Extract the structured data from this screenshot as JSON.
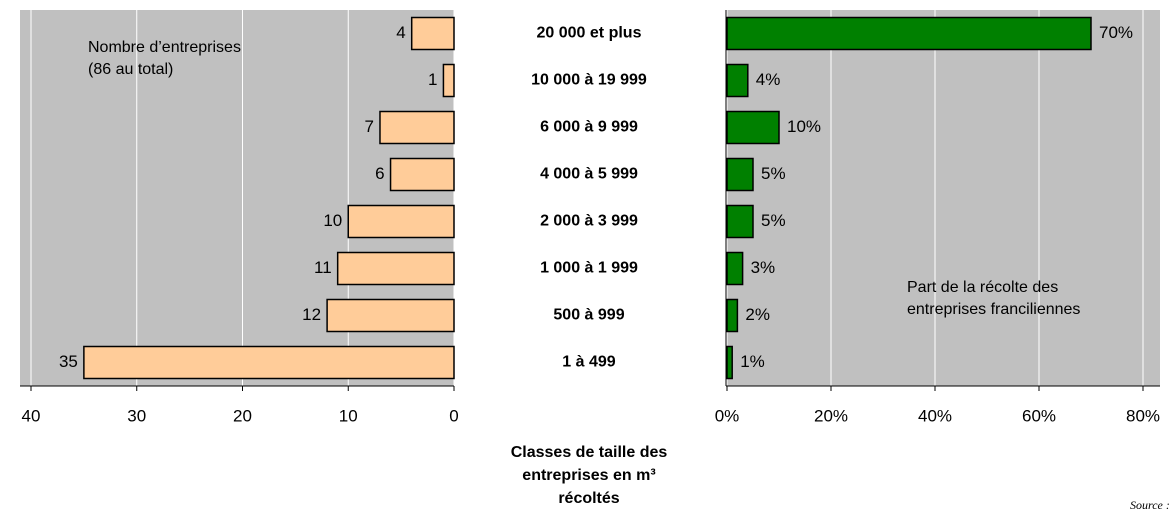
{
  "chart_data": [
    {
      "type": "bar",
      "orientation": "horizontal",
      "inverted": true,
      "annotation": [
        "Nombre d’entreprises",
        "(86 au total)"
      ],
      "categories": [
        "20 000 et plus",
        "10 000 à 19 999",
        "6 000 à 9 999",
        "4 000 à 5 999",
        "2 000 à 3 999",
        "1 000 à 1 999",
        "500 à 999",
        "1 à 499"
      ],
      "category_axis_label": [
        "Classes de taille des",
        "entreprises en m³",
        "récoltés"
      ],
      "values": [
        4,
        1,
        7,
        6,
        10,
        11,
        12,
        35
      ],
      "color": "#ffcc99",
      "xlim": [
        0,
        40
      ],
      "xticks": [
        0,
        10,
        20,
        30,
        40
      ],
      "grid": true
    },
    {
      "type": "bar",
      "orientation": "horizontal",
      "annotation": [
        "Part de la récolte des",
        "entreprises franciliennes"
      ],
      "values": [
        70,
        4,
        10,
        5,
        5,
        3,
        2,
        1
      ],
      "value_labels": [
        "70%",
        "4%",
        "10%",
        "5%",
        "5%",
        "3%",
        "2%",
        "1%"
      ],
      "color": "#008000",
      "xlim": [
        0,
        80
      ],
      "xticks": [
        {
          "value": 0,
          "label": "0%"
        },
        {
          "value": 20,
          "label": "20%"
        },
        {
          "value": 40,
          "label": "40%"
        },
        {
          "value": 60,
          "label": "60%"
        },
        {
          "value": 80,
          "label": "80%"
        }
      ],
      "grid": true,
      "source": "Source :"
    }
  ]
}
